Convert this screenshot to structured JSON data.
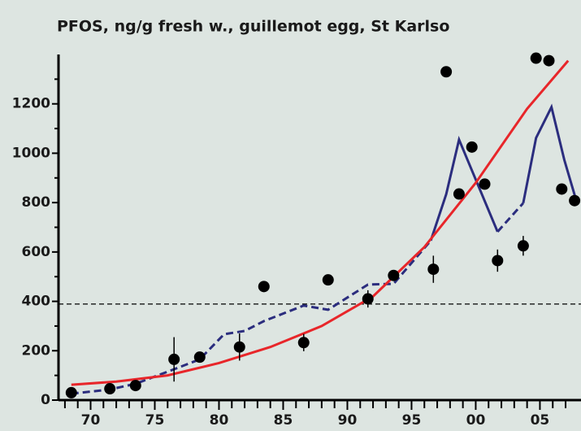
{
  "chart_data": {
    "type": "scatter",
    "title": "PFOS, ng/g fresh w., guillemot egg, St Karlso",
    "xlim": [
      1967.5,
      2008.2
    ],
    "ylim": [
      0,
      1400
    ],
    "xticks": [
      {
        "value": 1970,
        "label": "70"
      },
      {
        "value": 1975,
        "label": "75"
      },
      {
        "value": 1980,
        "label": "80"
      },
      {
        "value": 1985,
        "label": "85"
      },
      {
        "value": 1990,
        "label": "90"
      },
      {
        "value": 1995,
        "label": "95"
      },
      {
        "value": 2000,
        "label": "00"
      },
      {
        "value": 2005,
        "label": "05"
      }
    ],
    "xminor": [
      1968,
      1969,
      1971,
      1972,
      1973,
      1974,
      1976,
      1977,
      1978,
      1979,
      1981,
      1982,
      1983,
      1984,
      1986,
      1987,
      1988,
      1989,
      1991,
      1992,
      1993,
      1994,
      1996,
      1997,
      1998,
      1999,
      2001,
      2002,
      2003,
      2004,
      2006,
      2007
    ],
    "yticks": [
      0,
      200,
      400,
      600,
      800,
      1000,
      1200
    ],
    "yminor": [
      100,
      300,
      500,
      700,
      900,
      1100,
      1300
    ],
    "reference_line": 389,
    "points": {
      "color": "#000000",
      "x": [
        1968.5,
        1971.5,
        1973.5,
        1976.5,
        1978.5,
        1981.6,
        1983.5,
        1986.6,
        1988.5,
        1991.6,
        1993.6,
        1996.7,
        1997.7,
        1998.7,
        1999.7,
        2000.7,
        2001.7,
        2003.7,
        2004.7,
        2005.7,
        2006.7,
        2007.7
      ],
      "values": [
        30,
        46,
        59,
        165,
        174,
        215,
        460,
        233,
        487,
        410,
        505,
        530,
        1330,
        835,
        1025,
        875,
        565,
        625,
        1385,
        1375,
        855,
        808
      ],
      "errors": [
        null,
        null,
        null,
        90,
        null,
        55,
        null,
        35,
        null,
        35,
        null,
        55,
        null,
        null,
        null,
        null,
        45,
        40,
        null,
        null,
        null,
        null
      ]
    },
    "series": [
      {
        "color": "#2b2d7e",
        "dashed": true,
        "x": [
          1968.5,
          1971.5,
          1973.5,
          1976.5,
          1978.5,
          1980.4,
          1982,
          1983.5,
          1986.6,
          1988.5,
          1991.6,
          1993.6,
          1996.5,
          null,
          2001.7,
          2003.7
        ],
        "values": [
          26,
          43,
          66,
          125,
          165,
          267,
          280,
          320,
          383,
          366,
          468,
          471,
          646,
          null,
          682,
          798
        ]
      },
      {
        "color": "#2b2d7e",
        "dashed": false,
        "x": [
          1996.5,
          1997.7,
          1998.7,
          2001.7,
          null,
          2003.7,
          2004.7,
          2005.9,
          2006.9,
          2007.8
        ],
        "values": [
          646,
          834,
          1055,
          682,
          null,
          798,
          1062,
          1187,
          973,
          814
        ]
      },
      {
        "color": "#e8262a",
        "dashed": false,
        "x": [
          1968.5,
          1972,
          1976,
          1980,
          1984,
          1988,
          1992,
          1996,
          2000,
          2004,
          2007.2
        ],
        "values": [
          62,
          75,
          100,
          150,
          215,
          300,
          420,
          620,
          880,
          1180,
          1375
        ]
      }
    ]
  }
}
